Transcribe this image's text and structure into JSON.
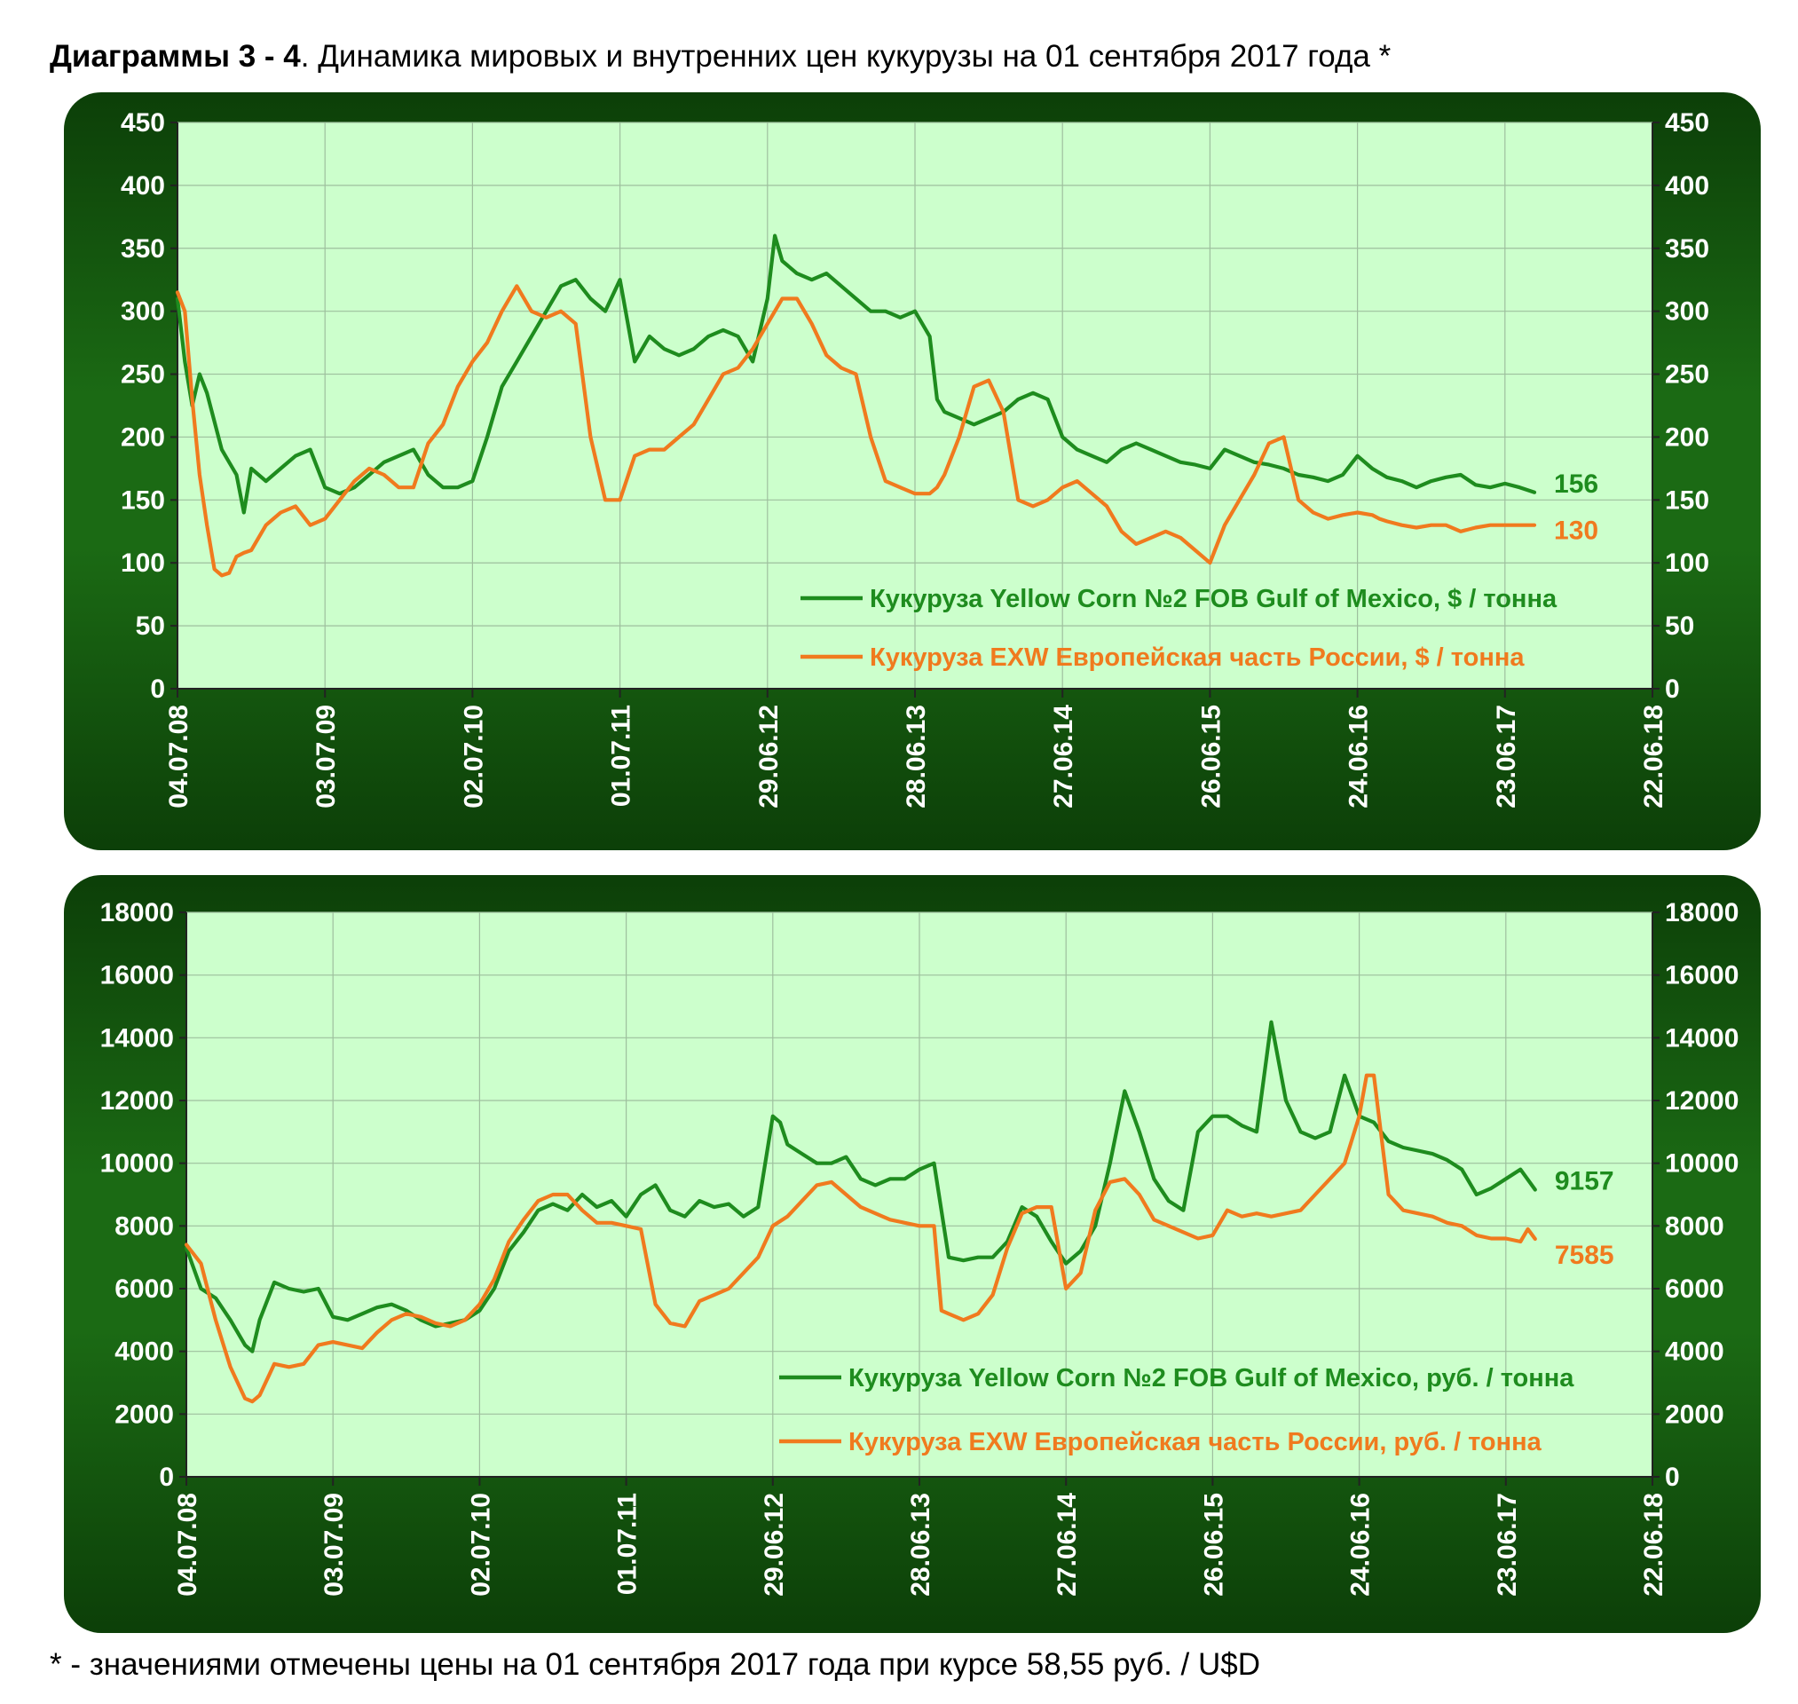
{
  "title": {
    "prefix": "Диаграммы 3 - 4",
    "text": ". Динамика мировых и внутренних цен кукурузы на 01 сентября 2017 года *"
  },
  "footnote": "* - значениями отмечены цены на 01 сентября 2017 года при курсе 58,55 руб. / U$D",
  "colors": {
    "green": "#1e8c1e",
    "orange": "#f07a1e",
    "plot_bg": "#ccffcc",
    "panel": "#1b6a14"
  },
  "chart_data": [
    {
      "type": "line",
      "title": "",
      "xlabel": "",
      "ylabel": "",
      "ylim": [
        0,
        450
      ],
      "yticks": [
        "0",
        "50",
        "100",
        "150",
        "200",
        "250",
        "300",
        "350",
        "400",
        "450"
      ],
      "xticks": [
        "04.07.08",
        "03.07.09",
        "02.07.10",
        "01.07.11",
        "29.06.12",
        "28.06.13",
        "27.06.14",
        "26.06.15",
        "24.06.16",
        "23.06.17",
        "22.06.18"
      ],
      "grid": true,
      "legend_position": "bottom-right",
      "series": [
        {
          "name": "Кукуруза Yellow Corn №2 FOB Gulf of Mexico, $ / тонна",
          "color": "#1e8c1e",
          "end_label": "156",
          "x": [
            0,
            0.05,
            0.1,
            0.15,
            0.2,
            0.3,
            0.4,
            0.45,
            0.5,
            0.6,
            0.7,
            0.8,
            0.9,
            1.0,
            1.1,
            1.2,
            1.3,
            1.4,
            1.5,
            1.6,
            1.7,
            1.8,
            1.9,
            2.0,
            2.1,
            2.2,
            2.3,
            2.4,
            2.5,
            2.6,
            2.7,
            2.8,
            2.9,
            3.0,
            3.1,
            3.2,
            3.3,
            3.4,
            3.5,
            3.6,
            3.7,
            3.8,
            3.9,
            4.0,
            4.05,
            4.1,
            4.2,
            4.3,
            4.4,
            4.5,
            4.6,
            4.7,
            4.8,
            4.9,
            5.0,
            5.1,
            5.15,
            5.2,
            5.3,
            5.4,
            5.5,
            5.6,
            5.7,
            5.8,
            5.9,
            6.0,
            6.1,
            6.2,
            6.3,
            6.4,
            6.5,
            6.6,
            6.7,
            6.8,
            6.9,
            7.0,
            7.1,
            7.2,
            7.3,
            7.4,
            7.5,
            7.6,
            7.7,
            7.8,
            7.9,
            8.0,
            8.1,
            8.2,
            8.3,
            8.4,
            8.5,
            8.6,
            8.7,
            8.8,
            8.9,
            9.0,
            9.1,
            9.2
          ],
          "values": [
            310,
            260,
            225,
            250,
            235,
            190,
            170,
            140,
            175,
            165,
            175,
            185,
            190,
            160,
            155,
            160,
            170,
            180,
            185,
            190,
            170,
            160,
            160,
            165,
            200,
            240,
            260,
            280,
            300,
            320,
            325,
            310,
            300,
            325,
            260,
            280,
            270,
            265,
            270,
            280,
            285,
            280,
            260,
            310,
            360,
            340,
            330,
            325,
            330,
            320,
            310,
            300,
            300,
            295,
            300,
            280,
            230,
            220,
            215,
            210,
            215,
            220,
            230,
            235,
            230,
            200,
            190,
            185,
            180,
            190,
            195,
            190,
            185,
            180,
            178,
            175,
            190,
            185,
            180,
            178,
            175,
            170,
            168,
            165,
            170,
            185,
            175,
            168,
            165,
            160,
            165,
            168,
            170,
            162,
            160,
            163,
            160,
            156
          ]
        },
        {
          "name": "Кукуруза EXW Европейская часть России, $ / тонна",
          "color": "#f07a1e",
          "end_label": "130",
          "x": [
            0,
            0.05,
            0.1,
            0.15,
            0.2,
            0.25,
            0.3,
            0.35,
            0.4,
            0.45,
            0.5,
            0.6,
            0.7,
            0.8,
            0.9,
            1.0,
            1.1,
            1.2,
            1.3,
            1.4,
            1.5,
            1.6,
            1.7,
            1.8,
            1.9,
            2.0,
            2.1,
            2.2,
            2.3,
            2.4,
            2.5,
            2.6,
            2.7,
            2.8,
            2.9,
            3.0,
            3.1,
            3.2,
            3.3,
            3.4,
            3.5,
            3.6,
            3.7,
            3.8,
            3.9,
            4.0,
            4.1,
            4.2,
            4.3,
            4.4,
            4.5,
            4.6,
            4.7,
            4.8,
            4.9,
            5.0,
            5.1,
            5.15,
            5.2,
            5.3,
            5.4,
            5.5,
            5.6,
            5.7,
            5.8,
            5.9,
            6.0,
            6.1,
            6.2,
            6.3,
            6.4,
            6.5,
            6.6,
            6.7,
            6.8,
            6.9,
            7.0,
            7.1,
            7.2,
            7.3,
            7.4,
            7.5,
            7.6,
            7.7,
            7.8,
            7.9,
            8.0,
            8.1,
            8.15,
            8.2,
            8.3,
            8.4,
            8.5,
            8.6,
            8.7,
            8.8,
            8.9,
            9.0,
            9.1,
            9.2
          ],
          "values": [
            315,
            300,
            230,
            170,
            130,
            95,
            90,
            92,
            105,
            108,
            110,
            130,
            140,
            145,
            130,
            135,
            150,
            165,
            175,
            170,
            160,
            160,
            195,
            210,
            240,
            260,
            275,
            300,
            320,
            300,
            295,
            300,
            290,
            200,
            150,
            150,
            185,
            190,
            190,
            200,
            210,
            230,
            250,
            255,
            270,
            290,
            310,
            310,
            290,
            265,
            255,
            250,
            200,
            165,
            160,
            155,
            155,
            160,
            170,
            200,
            240,
            245,
            220,
            150,
            145,
            150,
            160,
            165,
            155,
            145,
            125,
            115,
            120,
            125,
            120,
            110,
            100,
            130,
            150,
            170,
            195,
            200,
            150,
            140,
            135,
            138,
            140,
            138,
            135,
            133,
            130,
            128,
            130,
            130,
            125,
            128,
            130,
            130,
            130,
            130
          ]
        }
      ]
    },
    {
      "type": "line",
      "title": "",
      "xlabel": "",
      "ylabel": "",
      "ylim": [
        0,
        18000
      ],
      "yticks": [
        "0",
        "2000",
        "4000",
        "6000",
        "8000",
        "10000",
        "12000",
        "14000",
        "16000",
        "18000"
      ],
      "xticks": [
        "04.07.08",
        "03.07.09",
        "02.07.10",
        "01.07.11",
        "29.06.12",
        "28.06.13",
        "27.06.14",
        "26.06.15",
        "24.06.16",
        "23.06.17",
        "22.06.18"
      ],
      "grid": true,
      "legend_position": "bottom-right",
      "series": [
        {
          "name": "Кукуруза Yellow Corn №2 FOB Gulf of Mexico, руб. / тонна",
          "color": "#1e8c1e",
          "end_label": "9157",
          "x": [
            0,
            0.1,
            0.2,
            0.3,
            0.4,
            0.45,
            0.5,
            0.6,
            0.7,
            0.8,
            0.9,
            1.0,
            1.1,
            1.2,
            1.3,
            1.4,
            1.5,
            1.6,
            1.7,
            1.8,
            1.9,
            2.0,
            2.1,
            2.2,
            2.3,
            2.4,
            2.5,
            2.6,
            2.7,
            2.8,
            2.9,
            3.0,
            3.1,
            3.2,
            3.3,
            3.4,
            3.5,
            3.6,
            3.7,
            3.8,
            3.9,
            4.0,
            4.05,
            4.1,
            4.2,
            4.3,
            4.4,
            4.5,
            4.6,
            4.7,
            4.8,
            4.9,
            5.0,
            5.1,
            5.2,
            5.3,
            5.4,
            5.5,
            5.6,
            5.7,
            5.8,
            5.9,
            6.0,
            6.1,
            6.2,
            6.3,
            6.4,
            6.5,
            6.6,
            6.7,
            6.8,
            6.9,
            7.0,
            7.1,
            7.2,
            7.3,
            7.4,
            7.5,
            7.6,
            7.7,
            7.8,
            7.9,
            8.0,
            8.1,
            8.2,
            8.3,
            8.4,
            8.5,
            8.6,
            8.7,
            8.8,
            8.9,
            9.0,
            9.1,
            9.2
          ],
          "values": [
            7300,
            6000,
            5700,
            5000,
            4200,
            4000,
            5000,
            6200,
            6000,
            5900,
            6000,
            5100,
            5000,
            5200,
            5400,
            5500,
            5300,
            5000,
            4800,
            4900,
            5000,
            5300,
            6000,
            7200,
            7800,
            8500,
            8700,
            8500,
            9000,
            8600,
            8800,
            8300,
            9000,
            9300,
            8500,
            8300,
            8800,
            8600,
            8700,
            8300,
            8600,
            11500,
            11300,
            10600,
            10300,
            10000,
            10000,
            10200,
            9500,
            9300,
            9500,
            9500,
            9800,
            10000,
            7000,
            6900,
            7000,
            7000,
            7500,
            8600,
            8300,
            7500,
            6800,
            7200,
            8000,
            10000,
            12300,
            11000,
            9500,
            8800,
            8500,
            11000,
            11500,
            11500,
            11200,
            11000,
            14500,
            12000,
            11000,
            10800,
            11000,
            12800,
            11500,
            11300,
            10700,
            10500,
            10400,
            10300,
            10100,
            9800,
            9000,
            9200,
            9500,
            9800,
            9157
          ]
        },
        {
          "name": "Кукуруза EXW Европейская часть России, руб. / тонна",
          "color": "#f07a1e",
          "end_label": "7585",
          "x": [
            0,
            0.1,
            0.2,
            0.3,
            0.4,
            0.45,
            0.5,
            0.6,
            0.7,
            0.8,
            0.9,
            1.0,
            1.1,
            1.2,
            1.3,
            1.4,
            1.5,
            1.6,
            1.7,
            1.8,
            1.9,
            2.0,
            2.1,
            2.2,
            2.3,
            2.4,
            2.5,
            2.6,
            2.7,
            2.8,
            2.9,
            3.0,
            3.1,
            3.2,
            3.3,
            3.4,
            3.5,
            3.6,
            3.7,
            3.8,
            3.9,
            4.0,
            4.1,
            4.2,
            4.3,
            4.4,
            4.5,
            4.6,
            4.7,
            4.8,
            4.9,
            5.0,
            5.1,
            5.15,
            5.2,
            5.3,
            5.4,
            5.5,
            5.6,
            5.7,
            5.8,
            5.9,
            6.0,
            6.1,
            6.2,
            6.3,
            6.4,
            6.5,
            6.6,
            6.7,
            6.8,
            6.9,
            7.0,
            7.1,
            7.2,
            7.3,
            7.4,
            7.5,
            7.6,
            7.7,
            7.8,
            7.9,
            8.0,
            8.05,
            8.1,
            8.2,
            8.3,
            8.4,
            8.5,
            8.6,
            8.7,
            8.8,
            8.9,
            9.0,
            9.1,
            9.15,
            9.2
          ],
          "values": [
            7400,
            6800,
            5000,
            3500,
            2500,
            2400,
            2600,
            3600,
            3500,
            3600,
            4200,
            4300,
            4200,
            4100,
            4600,
            5000,
            5200,
            5100,
            4900,
            4800,
            5000,
            5500,
            6300,
            7500,
            8200,
            8800,
            9000,
            9000,
            8500,
            8100,
            8100,
            8000,
            7900,
            5500,
            4900,
            4800,
            5600,
            5800,
            6000,
            6500,
            7000,
            8000,
            8300,
            8800,
            9300,
            9400,
            9000,
            8600,
            8400,
            8200,
            8100,
            8000,
            8000,
            5300,
            5200,
            5000,
            5200,
            5800,
            7300,
            8400,
            8600,
            8600,
            6000,
            6500,
            8500,
            9400,
            9500,
            9000,
            8200,
            8000,
            7800,
            7600,
            7700,
            8500,
            8300,
            8400,
            8300,
            8400,
            8500,
            9000,
            9500,
            10000,
            11500,
            12800,
            12800,
            9000,
            8500,
            8400,
            8300,
            8100,
            8000,
            7700,
            7600,
            7600,
            7500,
            7900,
            7585
          ]
        }
      ]
    }
  ]
}
